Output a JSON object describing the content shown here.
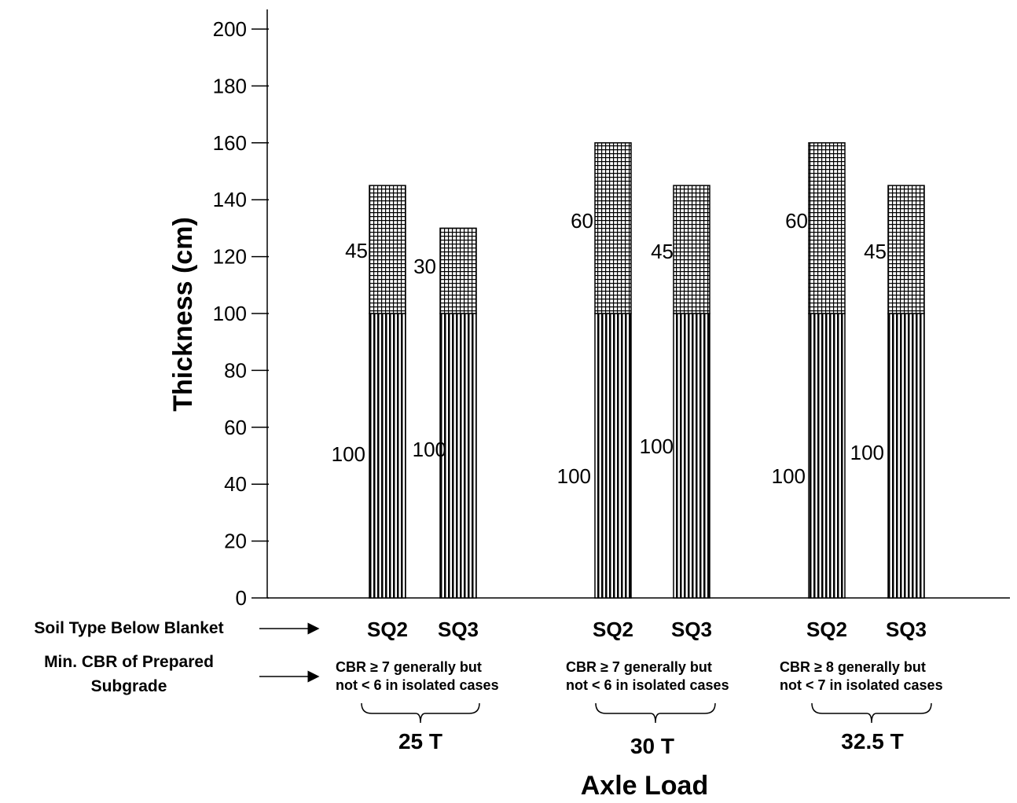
{
  "chart_data": {
    "type": "bar",
    "stacked": true,
    "title": "",
    "xlabel": "Axle Load",
    "ylabel": "Thickness (cm)",
    "ylim": [
      0,
      200
    ],
    "yticks": [
      0,
      20,
      40,
      60,
      80,
      100,
      120,
      140,
      160,
      180,
      200
    ],
    "grid": false,
    "legend": "none",
    "row_labels": {
      "soil": "Soil Type Below Blanket",
      "cbr_line1": "Min. CBR of Prepared",
      "cbr_line2": "Subgrade"
    },
    "groups": [
      {
        "axle_load": "25 T",
        "cbr_line1": "CBR ≥ 7 generally but",
        "cbr_line2": "not < 6 in isolated cases",
        "bars": [
          {
            "soil": "SQ2",
            "bottom": 100,
            "top": 45,
            "bottom_label": "100",
            "top_label": "45"
          },
          {
            "soil": "SQ3",
            "bottom": 100,
            "top": 30,
            "bottom_label": "100",
            "top_label": "30"
          }
        ]
      },
      {
        "axle_load": "30  T",
        "cbr_line1": "CBR ≥ 7 generally but",
        "cbr_line2": "not < 6 in isolated cases",
        "bars": [
          {
            "soil": "SQ2",
            "bottom": 100,
            "top": 60,
            "bottom_label": "100",
            "top_label": "60"
          },
          {
            "soil": "SQ3",
            "bottom": 100,
            "top": 45,
            "bottom_label": "100",
            "top_label": "45"
          }
        ]
      },
      {
        "axle_load": "32.5 T",
        "cbr_line1": "CBR ≥ 8 generally but",
        "cbr_line2": "not < 7 in isolated cases",
        "bars": [
          {
            "soil": "SQ2",
            "bottom": 100,
            "top": 60,
            "bottom_label": "100",
            "top_label": "60"
          },
          {
            "soil": "SQ3",
            "bottom": 100,
            "top": 45,
            "bottom_label": "100",
            "top_label": "45"
          }
        ]
      }
    ],
    "colors": {
      "line": "#000000",
      "fill": "#ffffff"
    }
  }
}
